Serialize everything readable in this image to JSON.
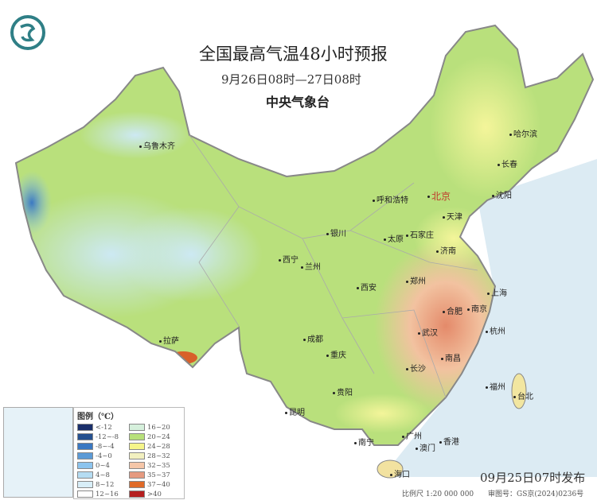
{
  "header": {
    "title": "全国最高气温48小时预报",
    "period": "9月26日08时—27日08时",
    "issuer": "中央气象台",
    "logo_icon": "cma-dragon-logo"
  },
  "cities": [
    {
      "name": "乌鲁木齐"
    },
    {
      "name": "呼和浩特"
    },
    {
      "name": "北京",
      "capital": true
    },
    {
      "name": "天津"
    },
    {
      "name": "哈尔滨"
    },
    {
      "name": "长春"
    },
    {
      "name": "沈阳"
    },
    {
      "name": "银川"
    },
    {
      "name": "太原"
    },
    {
      "name": "石家庄"
    },
    {
      "name": "济南"
    },
    {
      "name": "西宁"
    },
    {
      "name": "兰州"
    },
    {
      "name": "西安"
    },
    {
      "name": "郑州"
    },
    {
      "name": "合肥"
    },
    {
      "name": "南京"
    },
    {
      "name": "上海"
    },
    {
      "name": "杭州"
    },
    {
      "name": "武汉"
    },
    {
      "name": "成都"
    },
    {
      "name": "重庆"
    },
    {
      "name": "拉萨"
    },
    {
      "name": "长沙"
    },
    {
      "name": "南昌"
    },
    {
      "name": "福州"
    },
    {
      "name": "台北"
    },
    {
      "name": "贵阳"
    },
    {
      "name": "昆明"
    },
    {
      "name": "南宁"
    },
    {
      "name": "广州"
    },
    {
      "name": "澳门"
    },
    {
      "name": "香港"
    },
    {
      "name": "海口"
    }
  ],
  "legend": {
    "title": "图例（℃）",
    "items": [
      {
        "label": "<-12",
        "color": "#1a2f6b"
      },
      {
        "label": "16~20",
        "color": "#d6f0dc"
      },
      {
        "label": "-12~-8",
        "color": "#25508f"
      },
      {
        "label": "20~24",
        "color": "#b8e07a"
      },
      {
        "label": "-8~-4",
        "color": "#3a78c2"
      },
      {
        "label": "24~28",
        "color": "#f5f58a"
      },
      {
        "label": "-4~0",
        "color": "#5b9ad6"
      },
      {
        "label": "28~32",
        "color": "#f2f0c0"
      },
      {
        "label": "0~4",
        "color": "#8cc4ee"
      },
      {
        "label": "32~35",
        "color": "#f5c6a8"
      },
      {
        "label": "4~8",
        "color": "#b5dcf2"
      },
      {
        "label": "35~37",
        "color": "#e59a80"
      },
      {
        "label": "8~12",
        "color": "#d8eef8"
      },
      {
        "label": "37~40",
        "color": "#e06a28"
      },
      {
        "label": "12~16",
        "color": "#ffffff"
      },
      {
        "label": ">40",
        "color": "#b51e1e"
      }
    ]
  },
  "footer": {
    "issued": "09月25日07时发布",
    "scale": "比例尺 1:20 000 000",
    "approval": "审图号：GS京(2024)0236号"
  }
}
